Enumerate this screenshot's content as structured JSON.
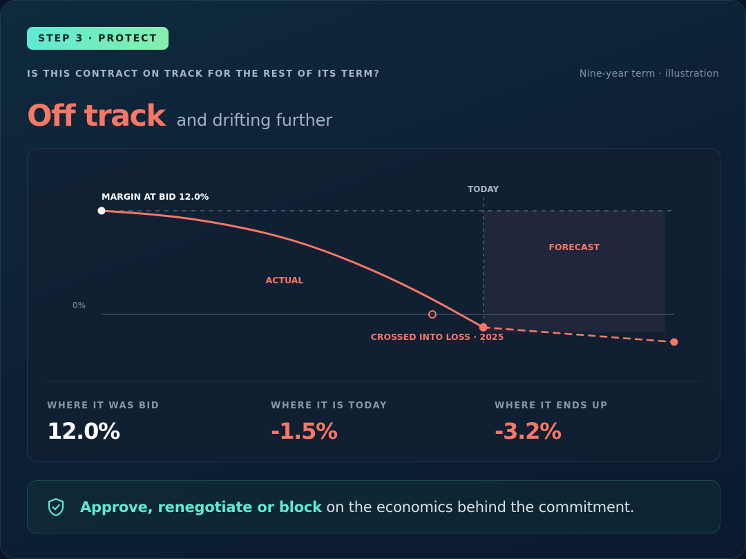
{
  "badge": "STEP 3 · PROTECT",
  "question": "IS THIS CONTRACT ON TRACK FOR THE REST OF ITS TERM?",
  "term_note": "Nine-year term · illustration",
  "headline": {
    "status": "Off track",
    "sub": "and drifting further"
  },
  "colors": {
    "accent": "#f87765",
    "teal": "#5eead4",
    "white": "#ffffff"
  },
  "chart_data": {
    "type": "line",
    "x": [
      0,
      1,
      2,
      3,
      4,
      5,
      6,
      7,
      8
    ],
    "actual": {
      "label": "ACTUAL",
      "x": [
        0,
        1,
        2,
        3,
        4,
        5,
        6
      ],
      "y": [
        12.0,
        11.5,
        10.4,
        8.7,
        6.0,
        2.6,
        -1.5
      ]
    },
    "forecast": {
      "label": "FORECAST",
      "x": [
        6,
        7,
        8,
        9
      ],
      "y": [
        -1.5,
        -2.1,
        -2.6,
        -3.2
      ]
    },
    "ylim": [
      -3.2,
      12.0
    ],
    "xlim": [
      0,
      9
    ],
    "today_x": 6,
    "today_label": "TODAY",
    "bid_level": 12.0,
    "bid_label": "MARGIN AT BID 12.0%",
    "zero_label": "0%",
    "zero_crossing_x": 5.2,
    "loss_label": "CROSSED INTO LOSS · 2025"
  },
  "stats": [
    {
      "label": "WHERE IT WAS BID",
      "value": "12.0%",
      "tone": "white"
    },
    {
      "label": "WHERE IT IS TODAY",
      "value": "-1.5%",
      "tone": "accent"
    },
    {
      "label": "WHERE IT ENDS UP",
      "value": "-3.2%",
      "tone": "accent"
    }
  ],
  "callout": {
    "highlight": "Approve, renegotiate or block",
    "rest": " on the economics behind the commitment."
  }
}
